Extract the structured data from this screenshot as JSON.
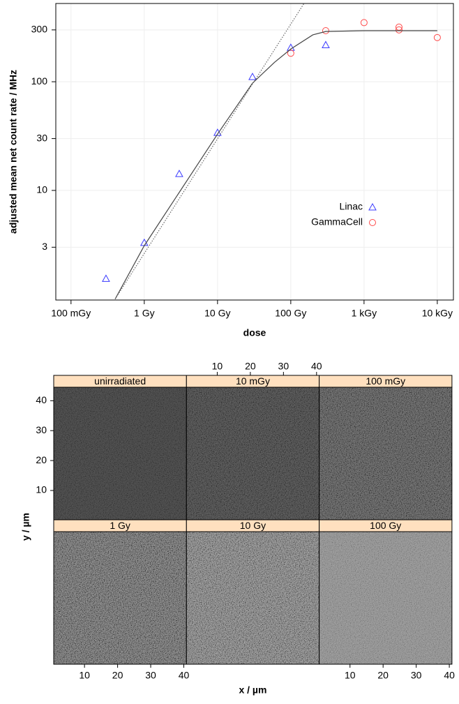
{
  "chart_data": [
    {
      "type": "scatter",
      "xlabel": "dose",
      "ylabel": "adjusted mean net count rate / MHz",
      "xscale": "log",
      "yscale": "log",
      "grid": true,
      "legend": "center-right",
      "xlim": [
        0.062,
        16600
      ],
      "ylim": [
        0.98,
        525
      ],
      "xticks": [
        {
          "value": 0.1,
          "label": "100 mGy"
        },
        {
          "value": 1,
          "label": "1 Gy"
        },
        {
          "value": 10,
          "label": "10 Gy"
        },
        {
          "value": 100,
          "label": "100 Gy"
        },
        {
          "value": 1000,
          "label": "1 kGy"
        },
        {
          "value": 10000,
          "label": "10 kGy"
        }
      ],
      "yticks": [
        3,
        10,
        30,
        100,
        300
      ],
      "series": [
        {
          "name": "Linac",
          "color": "#3a3aff",
          "marker": "triangle",
          "x": [
            0.3,
            1,
            3,
            10,
            30,
            100,
            300
          ],
          "values": [
            1.54,
            3.3,
            14.2,
            34,
            111,
            206,
            218
          ]
        },
        {
          "name": "GammaCell",
          "color": "#ff4a4a",
          "marker": "circle",
          "x": [
            100,
            300,
            1000,
            3000,
            3000,
            10000
          ],
          "values": [
            183,
            295,
            350,
            318,
            300,
            255
          ]
        },
        {
          "color": "#444444",
          "line": "solid",
          "x": [
            0.4,
            1,
            10,
            30,
            60,
            100,
            200,
            300,
            1000,
            10000
          ],
          "values": [
            1.0,
            3.1,
            33,
            97,
            151,
            200,
            270,
            290,
            295,
            295
          ]
        },
        {
          "color": "#666666",
          "line": "dotted",
          "x": [
            0.4,
            150
          ],
          "values": [
            1.0,
            520
          ]
        }
      ]
    },
    {
      "type": "image-grid",
      "xlabel": "x / µm",
      "ylabel": "y / µm",
      "xlim": [
        0.7,
        40.8
      ],
      "ylim": [
        0.2,
        44.5
      ],
      "xticks": [
        10,
        20,
        30,
        40
      ],
      "yticks": [
        10,
        20,
        30,
        40
      ],
      "panels": [
        "unirradiated",
        "10 mGy",
        "100 mGy",
        "1 Gy",
        "10 Gy",
        "100 Gy"
      ]
    }
  ]
}
